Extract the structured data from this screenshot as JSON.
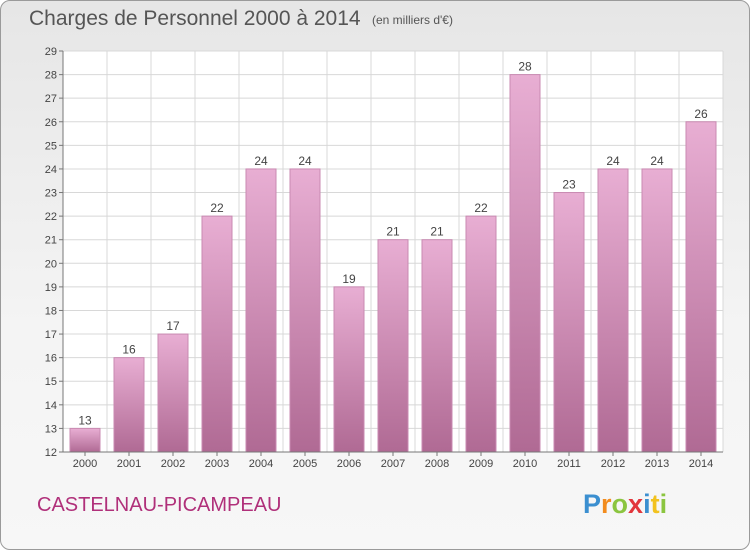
{
  "header": {
    "title": "Charges de Personnel 2000 à 2014",
    "subtitle": "(en milliers d'€)"
  },
  "footer": {
    "commune": "CASTELNAU-PICAMPEAU",
    "logo_letters": [
      {
        "ch": "P",
        "color": "#3b8fd0"
      },
      {
        "ch": "r",
        "color": "#f28c1e"
      },
      {
        "ch": "o",
        "color": "#8bc53f"
      },
      {
        "ch": "x",
        "color": "#e2353b"
      },
      {
        "ch": "i",
        "color": "#3b8fd0"
      },
      {
        "ch": "t",
        "color": "#f2c21e"
      },
      {
        "ch": "i",
        "color": "#8bc53f"
      }
    ]
  },
  "colors": {
    "bar_top": "#e8aed3",
    "bar_bottom": "#b06a94",
    "bar_edge": "#c98ab2",
    "grid": "#d8d8d8",
    "text": "#444444"
  },
  "chart_data": {
    "type": "bar",
    "title": "Charges de Personnel 2000 à 2014",
    "subtitle": "(en milliers d'€)",
    "xlabel": "",
    "ylabel": "",
    "categories": [
      "2000",
      "2001",
      "2002",
      "2003",
      "2004",
      "2005",
      "2006",
      "2007",
      "2008",
      "2009",
      "2010",
      "2011",
      "2012",
      "2013",
      "2014"
    ],
    "values": [
      13,
      16,
      17,
      22,
      24,
      24,
      19,
      21,
      21,
      22,
      28,
      23,
      24,
      24,
      26
    ],
    "ylim": [
      12,
      29
    ],
    "yticks": [
      12,
      13,
      14,
      15,
      16,
      17,
      18,
      19,
      20,
      21,
      22,
      23,
      24,
      25,
      26,
      27,
      28,
      29
    ],
    "grid": true,
    "data_labels": true
  }
}
